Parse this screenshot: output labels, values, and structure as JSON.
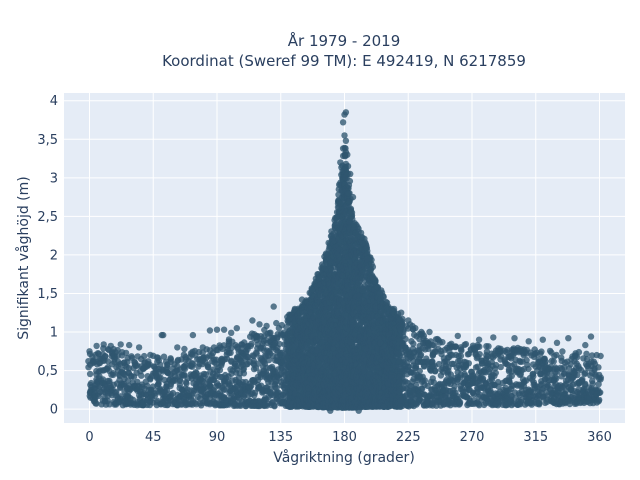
{
  "chart_data": {
    "type": "scatter",
    "title_line1": "År 1979 - 2019",
    "title_line2": "Koordinat (Sweref 99 TM): E 492419, N 6217859",
    "xlabel": "Vågriktning (grader)",
    "ylabel": "Signifikant våghöjd (m)",
    "xlim": [
      -18,
      378
    ],
    "ylim": [
      -0.18,
      4.1
    ],
    "xticks": [
      0,
      45,
      90,
      135,
      180,
      225,
      270,
      315,
      360
    ],
    "xtick_labels": [
      "0",
      "45",
      "90",
      "135",
      "180",
      "225",
      "270",
      "315",
      "360"
    ],
    "yticks": [
      0,
      0.5,
      1,
      1.5,
      2,
      2.5,
      3,
      3.5,
      4
    ],
    "ytick_labels": [
      "0",
      "0,5",
      "1",
      "1,5",
      "2",
      "2,5",
      "3",
      "3,5",
      "4"
    ],
    "grid": true,
    "marker_color": "#2f5670",
    "background_color": "#e5ecf6",
    "envelope": {
      "x": [
        0,
        10,
        20,
        30,
        45,
        60,
        75,
        90,
        105,
        120,
        135,
        145,
        155,
        160,
        165,
        170,
        175,
        178,
        180,
        182,
        185,
        190,
        195,
        200,
        205,
        210,
        220,
        230,
        240,
        255,
        270,
        285,
        300,
        315,
        330,
        345,
        360
      ],
      "upper": [
        0.72,
        0.8,
        0.78,
        0.72,
        0.7,
        0.72,
        0.78,
        0.85,
        0.95,
        1.0,
        1.15,
        1.28,
        1.45,
        1.7,
        1.9,
        2.2,
        2.6,
        3.1,
        3.4,
        3.1,
        2.6,
        2.35,
        2.15,
        1.85,
        1.55,
        1.35,
        1.2,
        1.05,
        0.95,
        0.85,
        0.85,
        0.82,
        0.8,
        0.78,
        0.76,
        0.75,
        0.72
      ],
      "lower": [
        0.08,
        0.06,
        0.05,
        0.05,
        0.05,
        0.05,
        0.05,
        0.05,
        0.04,
        0.04,
        0.03,
        0.03,
        0.03,
        0.03,
        0.02,
        0.02,
        0.02,
        0.02,
        0.02,
        0.02,
        0.02,
        0.02,
        0.03,
        0.03,
        0.03,
        0.03,
        0.03,
        0.04,
        0.04,
        0.05,
        0.05,
        0.05,
        0.05,
        0.06,
        0.06,
        0.07,
        0.08
      ]
    },
    "outliers": [
      {
        "x": 181,
        "y": 3.85
      },
      {
        "x": 180,
        "y": 3.82
      },
      {
        "x": 179,
        "y": 3.72
      },
      {
        "x": 180,
        "y": 3.55
      },
      {
        "x": 181,
        "y": 3.48
      },
      {
        "x": 179,
        "y": 3.38
      },
      {
        "x": 182,
        "y": 3.3
      },
      {
        "x": 177,
        "y": 3.2
      },
      {
        "x": 184,
        "y": 3.05
      },
      {
        "x": 176,
        "y": 2.85
      },
      {
        "x": 186,
        "y": 2.75
      },
      {
        "x": 173,
        "y": 2.45
      },
      {
        "x": 190,
        "y": 2.3
      },
      {
        "x": 193,
        "y": 2.15
      },
      {
        "x": 167,
        "y": 2.0
      },
      {
        "x": 196,
        "y": 1.95
      },
      {
        "x": 162,
        "y": 1.7
      },
      {
        "x": 200,
        "y": 1.7
      },
      {
        "x": 157,
        "y": 1.55
      },
      {
        "x": 205,
        "y": 1.5
      },
      {
        "x": 150,
        "y": 1.42
      },
      {
        "x": 210,
        "y": 1.38
      },
      {
        "x": 130,
        "y": 1.33
      },
      {
        "x": 145,
        "y": 1.3
      },
      {
        "x": 215,
        "y": 1.3
      },
      {
        "x": 220,
        "y": 1.25
      },
      {
        "x": 115,
        "y": 1.15
      },
      {
        "x": 120,
        "y": 1.1
      },
      {
        "x": 125,
        "y": 1.08
      },
      {
        "x": 225,
        "y": 1.15
      },
      {
        "x": 230,
        "y": 1.05
      },
      {
        "x": 240,
        "y": 1.0
      },
      {
        "x": 235,
        "y": 0.98
      },
      {
        "x": 104,
        "y": 1.05
      },
      {
        "x": 95,
        "y": 1.03
      },
      {
        "x": 100,
        "y": 0.99
      },
      {
        "x": 85,
        "y": 1.02
      },
      {
        "x": 90,
        "y": 1.03
      },
      {
        "x": 73,
        "y": 0.96
      },
      {
        "x": 51,
        "y": 0.96
      },
      {
        "x": 52,
        "y": 0.96
      },
      {
        "x": 260,
        "y": 0.95
      },
      {
        "x": 285,
        "y": 0.93
      },
      {
        "x": 300,
        "y": 0.92
      },
      {
        "x": 320,
        "y": 0.9
      },
      {
        "x": 338,
        "y": 0.92
      },
      {
        "x": 354,
        "y": 0.94
      },
      {
        "x": 350,
        "y": 0.83
      },
      {
        "x": 275,
        "y": 0.9
      },
      {
        "x": 310,
        "y": 0.88
      },
      {
        "x": 330,
        "y": 0.86
      },
      {
        "x": 5,
        "y": 0.82
      },
      {
        "x": 10,
        "y": 0.84
      },
      {
        "x": 15,
        "y": 0.82
      },
      {
        "x": 22,
        "y": 0.84
      },
      {
        "x": 28,
        "y": 0.83
      },
      {
        "x": 35,
        "y": 0.8
      },
      {
        "x": 62,
        "y": 0.8
      },
      {
        "x": 67,
        "y": 0.78
      },
      {
        "x": 80,
        "y": 0.8
      },
      {
        "x": 358,
        "y": 0.7
      },
      {
        "x": 0,
        "y": 0.75
      },
      {
        "x": 2,
        "y": 0.68
      },
      {
        "x": 190,
        "y": -0.02
      },
      {
        "x": 170,
        "y": -0.02
      }
    ]
  }
}
